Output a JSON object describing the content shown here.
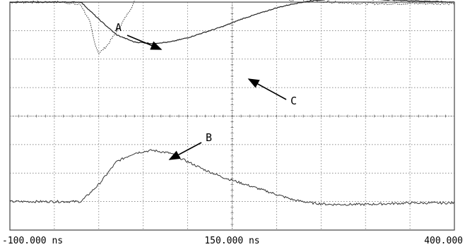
{
  "chart_data": {
    "type": "line",
    "title": "",
    "xlabel": "",
    "ylabel": "",
    "xlim": [
      -100,
      400
    ],
    "x_unit": "ns",
    "grid": true,
    "grid_divisions": {
      "x": 10,
      "y": 8
    },
    "x_tick_labels": [
      {
        "value": -100,
        "label": "-100.000 ns"
      },
      {
        "value": 150,
        "label": "150.000 ns"
      },
      {
        "value": 400,
        "label": "400.000"
      }
    ],
    "series": [
      {
        "name": "A",
        "style": "dotted",
        "color": "#333333",
        "x": [
          -100,
          -40,
          -20,
          -10,
          -5,
          0,
          10,
          25,
          40,
          55,
          70,
          90,
          110,
          130,
          150,
          180,
          220,
          260,
          300,
          350,
          400
        ],
        "y": [
          4.0,
          4.0,
          3.9,
          3.3,
          2.6,
          2.2,
          2.5,
          3.2,
          4.0,
          4.5,
          4.6,
          4.6,
          4.5,
          4.45,
          4.4,
          4.3,
          4.1,
          4.0,
          3.95,
          3.95,
          3.95
        ]
      },
      {
        "name": "B",
        "style": "solid",
        "color": "#333333",
        "x": [
          -100,
          -20,
          0,
          20,
          40,
          60,
          80,
          100,
          120,
          140,
          160,
          180,
          200,
          220,
          240,
          260,
          300,
          350,
          400
        ],
        "y": [
          -3.0,
          -3.0,
          -2.4,
          -1.6,
          -1.3,
          -1.2,
          -1.3,
          -1.6,
          -1.9,
          -2.15,
          -2.35,
          -2.55,
          -2.75,
          -2.95,
          -3.05,
          -3.1,
          -3.1,
          -3.05,
          -3.05
        ]
      },
      {
        "name": "C",
        "style": "solid",
        "color": "#222222",
        "x": [
          -100,
          -20,
          0,
          20,
          40,
          60,
          80,
          100,
          120,
          140,
          160,
          180,
          200,
          220,
          240,
          260,
          300,
          350,
          400
        ],
        "y": [
          4.0,
          4.0,
          3.4,
          2.85,
          2.6,
          2.55,
          2.6,
          2.75,
          2.95,
          3.15,
          3.4,
          3.6,
          3.8,
          3.95,
          4.05,
          4.1,
          4.1,
          4.05,
          4.0
        ]
      }
    ],
    "annotations": [
      {
        "label": "A",
        "target_series": "A"
      },
      {
        "label": "B",
        "target_series": "B"
      },
      {
        "label": "C",
        "target_series": "C"
      }
    ],
    "legend": "none"
  }
}
